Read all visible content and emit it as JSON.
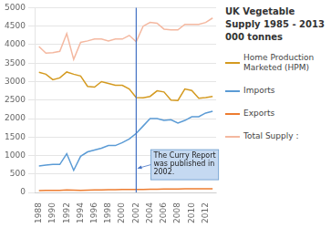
{
  "chart_data": {
    "type": "line",
    "title": "UK Vegetable\nSupply 1985 - 2013\n000 tonnes",
    "x": [
      1988,
      1989,
      1990,
      1991,
      1992,
      1993,
      1994,
      1995,
      1996,
      1997,
      1998,
      1999,
      2000,
      2001,
      2002,
      2003,
      2004,
      2005,
      2006,
      2007,
      2008,
      2009,
      2010,
      2011,
      2012,
      2013
    ],
    "series": [
      {
        "name": "Home Production\nMarketed (HPM)",
        "color": "#D49A20",
        "values": [
          3250,
          3200,
          3050,
          3100,
          3260,
          3200,
          3150,
          2870,
          2850,
          3000,
          2950,
          2900,
          2900,
          2800,
          2570,
          2560,
          2600,
          2750,
          2720,
          2500,
          2490,
          2800,
          2760,
          2550,
          2570,
          2600
        ]
      },
      {
        "name": "Imports",
        "color": "#5B9BD5",
        "values": [
          720,
          740,
          760,
          760,
          1050,
          600,
          980,
          1100,
          1150,
          1200,
          1270,
          1270,
          1350,
          1450,
          1600,
          1800,
          2000,
          2000,
          1950,
          1970,
          1880,
          1950,
          2050,
          2050,
          2150,
          2200
        ]
      },
      {
        "name": "Exports",
        "color": "#ED7D31",
        "values": [
          50,
          55,
          55,
          60,
          70,
          65,
          60,
          65,
          70,
          70,
          75,
          75,
          80,
          80,
          80,
          85,
          90,
          90,
          95,
          95,
          95,
          100,
          100,
          100,
          100,
          100
        ]
      },
      {
        "name": "Total Supply :",
        "color": "#F4B8A0",
        "values": [
          3950,
          3770,
          3780,
          3820,
          4300,
          3600,
          4060,
          4100,
          4150,
          4150,
          4100,
          4150,
          4150,
          4250,
          4080,
          4500,
          4600,
          4580,
          4420,
          4400,
          4400,
          4550,
          4550,
          4550,
          4600,
          4720
        ]
      }
    ],
    "xlim": [
      1987.5,
      2013.5
    ],
    "xticks": [
      1988,
      1990,
      1992,
      1994,
      1996,
      1998,
      2000,
      2002,
      2004,
      2006,
      2008,
      2010,
      2012
    ],
    "ylim": [
      0,
      5000
    ],
    "yticks": [
      0,
      500,
      1000,
      1500,
      2000,
      2500,
      3000,
      3500,
      4000,
      4500,
      5000
    ],
    "grid": "y",
    "legend": "right",
    "annotations": [
      {
        "text": "The Curry Report\nwas published in\n2002.",
        "x": 2002,
        "color": "#4472C4",
        "box_color": "#C5D9F1",
        "border_color": "#6699CC"
      }
    ]
  }
}
